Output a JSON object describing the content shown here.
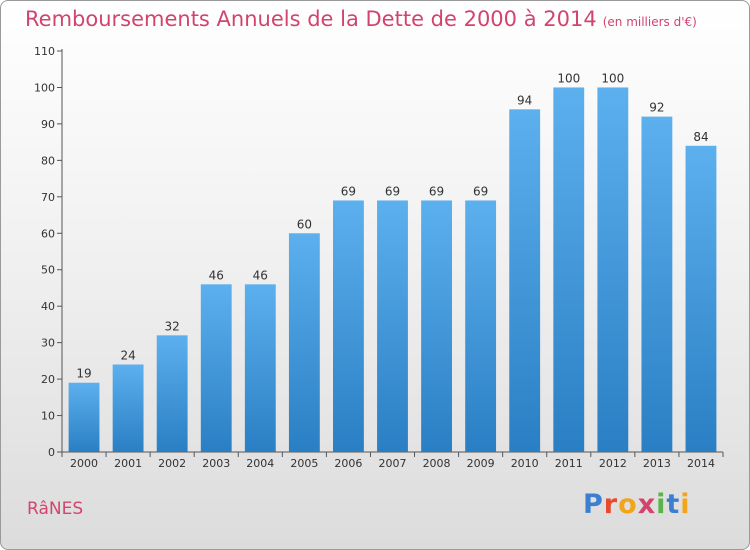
{
  "header": {
    "title": "Remboursements Annuels de la Dette de 2000 à 2014",
    "unit": "(en milliers d'€)"
  },
  "footer": {
    "commune": "RâNES",
    "logo": "Proxiti",
    "logo_colors": [
      "#3a7fd1",
      "#e84a2b",
      "#f2a51a",
      "#d2446e",
      "#58b548",
      "#3a7fd1",
      "#f2a51a"
    ]
  },
  "colors": {
    "title": "#d2446e",
    "bar_light": "#5cb0ee",
    "bar_dark": "#2a7fc4"
  },
  "chart_data": {
    "type": "bar",
    "title": "Remboursements Annuels de la Dette de 2000 à 2014",
    "xlabel": "",
    "ylabel": "",
    "ylim": [
      0,
      110
    ],
    "yticks": [
      0,
      10,
      20,
      30,
      40,
      50,
      60,
      70,
      80,
      90,
      100,
      110
    ],
    "grid": false,
    "categories": [
      "2000",
      "2001",
      "2002",
      "2003",
      "2004",
      "2005",
      "2006",
      "2007",
      "2008",
      "2009",
      "2010",
      "2011",
      "2012",
      "2013",
      "2014"
    ],
    "values": [
      19,
      24,
      32,
      46,
      46,
      60,
      69,
      69,
      69,
      69,
      94,
      100,
      100,
      92,
      84
    ]
  }
}
